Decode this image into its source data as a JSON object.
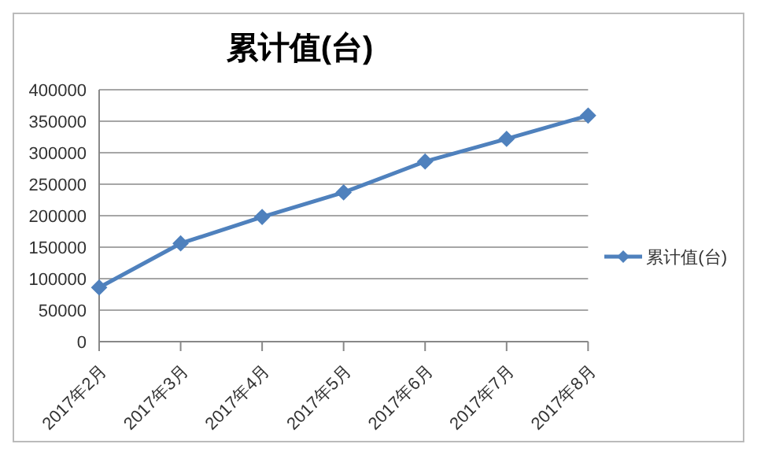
{
  "chart_data": {
    "type": "line",
    "title": "累计值(台)",
    "categories": [
      "2017年2月",
      "2017年3月",
      "2017年4月",
      "2017年5月",
      "2017年6月",
      "2017年7月",
      "2017年8月"
    ],
    "series": [
      {
        "name": "累计值(台)",
        "color": "#4f81bd",
        "values": [
          86000,
          156000,
          198000,
          237000,
          286000,
          322000,
          359000
        ]
      }
    ],
    "ylim": [
      0,
      400000
    ],
    "yticks": [
      0,
      50000,
      100000,
      150000,
      200000,
      250000,
      300000,
      350000,
      400000
    ],
    "grid": "y",
    "legend": "right",
    "marker": "diamond",
    "line_style": "solid"
  }
}
